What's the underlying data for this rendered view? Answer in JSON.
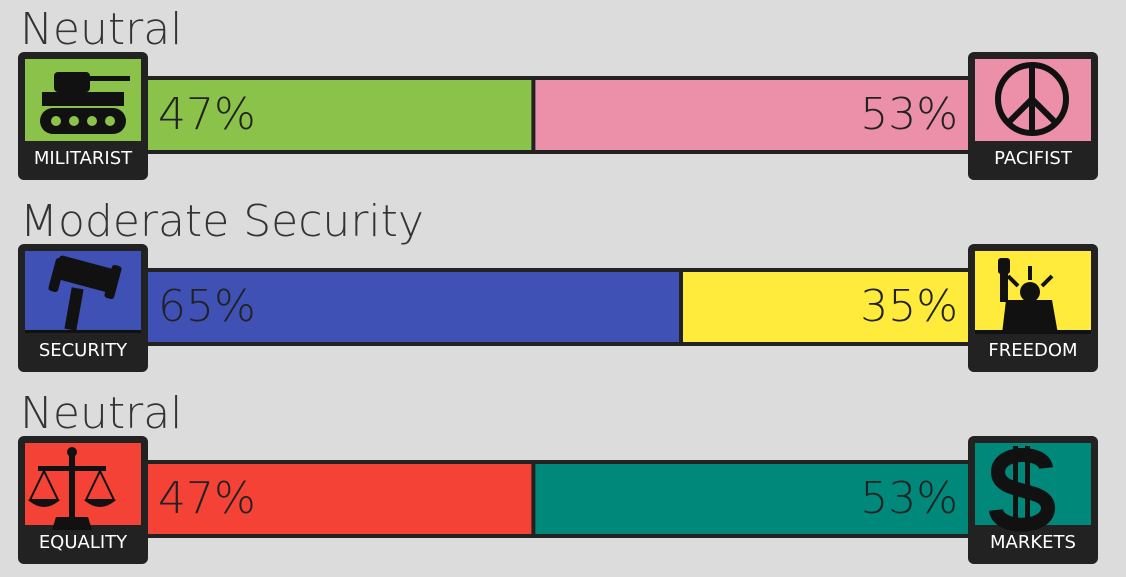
{
  "axes": [
    {
      "title": "Neutral",
      "left": {
        "label": "MILITARIST",
        "value": 47,
        "value_label": "47%",
        "color": "#8bc34a"
      },
      "right": {
        "label": "PACIFIST",
        "value": 53,
        "value_label": "53%",
        "color": "#ec90aa"
      }
    },
    {
      "title": "Moderate Security",
      "left": {
        "label": "SECURITY",
        "value": 65,
        "value_label": "65%",
        "color": "#3f51b5"
      },
      "right": {
        "label": "FREEDOM",
        "value": 35,
        "value_label": "35%",
        "color": "#ffeb3b"
      }
    },
    {
      "title": "Neutral",
      "left": {
        "label": "EQUALITY",
        "value": 47,
        "value_label": "47%",
        "color": "#f44336"
      },
      "right": {
        "label": "MARKETS",
        "value": 53,
        "value_label": "53%",
        "color": "#00897b"
      }
    }
  ]
}
